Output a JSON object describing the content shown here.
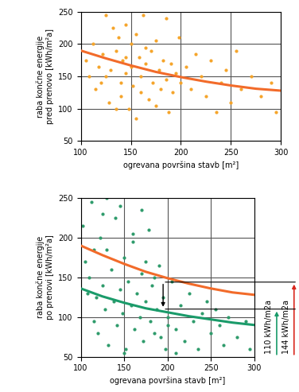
{
  "chart_data": [
    {
      "type": "scatter",
      "x_label": "ogrevana površina stavb [m²]",
      "y_label": "raba končne energije\npred prenovo [kWh/m²a]",
      "xlim": [
        100,
        300
      ],
      "xticks": [
        100,
        150,
        200,
        250,
        300
      ],
      "ylim": [
        50,
        250
      ],
      "yticks": [
        50,
        100,
        150,
        200,
        250
      ],
      "grid": true,
      "series": [
        {
          "type": "scatter",
          "color": "#f5a42a",
          "marker": "dot",
          "x": [
            105,
            108,
            112,
            115,
            118,
            120,
            122,
            125,
            128,
            130,
            132,
            135,
            138,
            140,
            140,
            142,
            145,
            145,
            148,
            150,
            150,
            152,
            155,
            158,
            160,
            160,
            162,
            165,
            168,
            170,
            172,
            175,
            178,
            180,
            182,
            185,
            188,
            190,
            192,
            195,
            198,
            200,
            205,
            210,
            215,
            220,
            225,
            230,
            235,
            240,
            245,
            250,
            255,
            260,
            270,
            280,
            290,
            295,
            135,
            155,
            175,
            125,
            145,
            165,
            185
          ],
          "values": [
            175,
            150,
            200,
            130,
            165,
            140,
            185,
            245,
            110,
            160,
            225,
            190,
            210,
            140,
            120,
            175,
            230,
            155,
            100,
            200,
            165,
            135,
            215,
            180,
            125,
            150,
            245,
            170,
            115,
            190,
            140,
            205,
            160,
            130,
            175,
            145,
            95,
            170,
            125,
            155,
            210,
            140,
            165,
            130,
            185,
            150,
            120,
            175,
            95,
            140,
            160,
            110,
            190,
            130,
            150,
            120,
            140,
            95,
            100,
            85,
            105,
            150,
            180,
            195,
            240
          ]
        },
        {
          "type": "line",
          "color": "#f26b2a",
          "line_style": "solid",
          "x": [
            100,
            125,
            150,
            175,
            200,
            225,
            250,
            275,
            300
          ],
          "values": [
            190,
            178,
            167,
            157,
            149,
            142,
            136,
            131,
            128
          ]
        }
      ]
    },
    {
      "type": "scatter",
      "x_label": "ogrevana površina stavb [m²]",
      "y_label": "raba končne energije\npo prenovi [kWh/m²a]",
      "xlim": [
        100,
        300
      ],
      "xticks": [
        100,
        150,
        200,
        250,
        300
      ],
      "ylim": [
        50,
        250
      ],
      "yticks": [
        50,
        100,
        150,
        200,
        250
      ],
      "grid": true,
      "series": [
        {
          "type": "scatter",
          "color": "#2e9b6b",
          "marker": "dot",
          "x": [
            102,
            105,
            108,
            110,
            112,
            115,
            118,
            120,
            122,
            125,
            128,
            130,
            132,
            135,
            138,
            140,
            142,
            145,
            148,
            150,
            152,
            155,
            158,
            160,
            162,
            165,
            168,
            170,
            172,
            175,
            178,
            180,
            182,
            185,
            188,
            190,
            192,
            195,
            198,
            200,
            205,
            210,
            215,
            220,
            225,
            230,
            235,
            240,
            245,
            250,
            255,
            260,
            265,
            270,
            280,
            290,
            295,
            115,
            125,
            145,
            160,
            175,
            185,
            200,
            210,
            130,
            150,
            170
          ],
          "values": [
            215,
            170,
            130,
            150,
            245,
            95,
            125,
            80,
            200,
            140,
            110,
            185,
            65,
            160,
            120,
            225,
            90,
            135,
            105,
            175,
            60,
            145,
            115,
            195,
            85,
            130,
            100,
            155,
            70,
            120,
            210,
            95,
            140,
            80,
            110,
            165,
            75,
            125,
            60,
            100,
            145,
            85,
            115,
            70,
            130,
            95,
            60,
            105,
            120,
            80,
            110,
            90,
            65,
            100,
            75,
            95,
            60,
            185,
            230,
            240,
            205,
            170,
            150,
            90,
            55,
            250,
            55,
            235
          ]
        },
        {
          "type": "line",
          "color": "#f26b2a",
          "line_style": "solid",
          "x": [
            100,
            125,
            150,
            175,
            200,
            225,
            250,
            275,
            300
          ],
          "values": [
            190,
            178,
            167,
            157,
            149,
            142,
            136,
            131,
            128
          ]
        },
        {
          "type": "line",
          "color": "#1a9b6a",
          "line_style": "solid",
          "x": [
            100,
            125,
            150,
            175,
            200,
            225,
            250,
            275,
            300
          ],
          "values": [
            136,
            126,
            118,
            111,
            106,
            101,
            97,
            93,
            90
          ]
        }
      ],
      "reference_lines": [
        {
          "text": "144 kWh/m2a",
          "x": 195,
          "y": 144,
          "color": "#d9261c"
        },
        {
          "text": "110 kWh/m2a",
          "x": 195,
          "y": 110,
          "color": "#1a9b6a"
        }
      ]
    }
  ]
}
